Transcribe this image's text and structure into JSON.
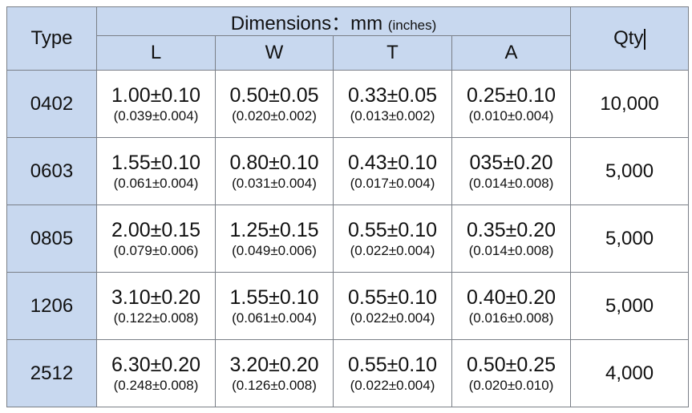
{
  "table": {
    "header": {
      "type": "Type",
      "dimensions": "Dimensions：mm",
      "unit": "(inches)",
      "columns": [
        "L",
        "W",
        "T",
        "A"
      ],
      "qty": "Qty"
    },
    "rows": [
      {
        "type": "0402",
        "cells": [
          [
            "1.00±0.10",
            "(0.039±0.004)"
          ],
          [
            "0.50±0.05",
            "(0.020±0.002)"
          ],
          [
            "0.33±0.05",
            "(0.013±0.002)"
          ],
          [
            "0.25±0.10",
            "(0.010±0.004)"
          ]
        ],
        "qty": "10,000"
      },
      {
        "type": "0603",
        "cells": [
          [
            "1.55±0.10",
            "(0.061±0.004)"
          ],
          [
            "0.80±0.10",
            "(0.031±0.004)"
          ],
          [
            "0.43±0.10",
            "(0.017±0.004)"
          ],
          [
            "035±0.20",
            "(0.014±0.008)"
          ]
        ],
        "qty": "5,000"
      },
      {
        "type": "0805",
        "cells": [
          [
            "2.00±0.15",
            "(0.079±0.006)"
          ],
          [
            "1.25±0.15",
            "(0.049±0.006)"
          ],
          [
            "0.55±0.10",
            "(0.022±0.004)"
          ],
          [
            "0.35±0.20",
            "(0.014±0.008)"
          ]
        ],
        "qty": "5,000"
      },
      {
        "type": "1206",
        "cells": [
          [
            "3.10±0.20",
            "(0.122±0.008)"
          ],
          [
            "1.55±0.10",
            "(0.061±0.004)"
          ],
          [
            "0.55±0.10",
            "(0.022±0.004)"
          ],
          [
            "0.40±0.20",
            "(0.016±0.008)"
          ]
        ],
        "qty": "5,000"
      },
      {
        "type": "2512",
        "cells": [
          [
            "6.30±0.20",
            "(0.248±0.008)"
          ],
          [
            "3.20±0.20",
            "(0.126±0.008)"
          ],
          [
            "0.55±0.10",
            "(0.022±0.004)"
          ],
          [
            "0.50±0.25",
            "(0.020±0.010)"
          ]
        ],
        "qty": "4,000"
      }
    ]
  }
}
